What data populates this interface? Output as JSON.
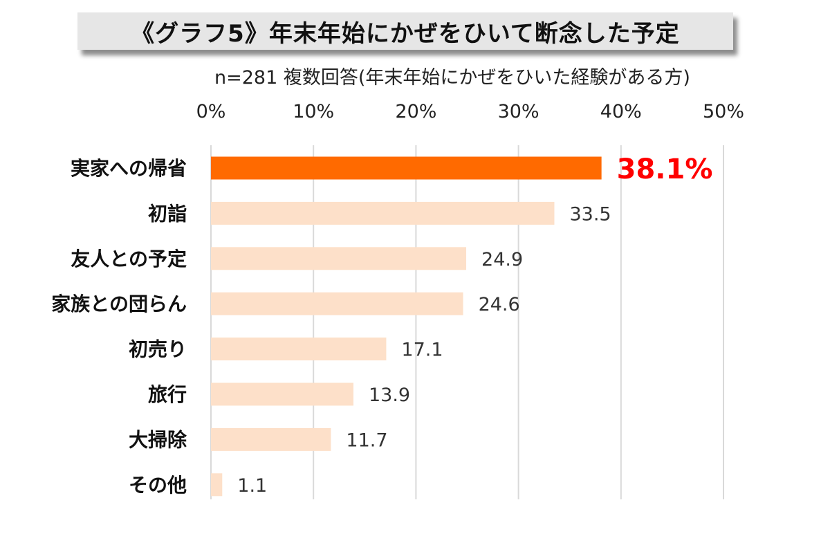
{
  "chart_data": {
    "type": "bar",
    "orientation": "horizontal",
    "title": "《グラフ5》年末年始にかぜをひいて断念した予定",
    "subtitle": "n=281  複数回答(年末年始にかぜをひいた経験がある方)",
    "categories": [
      "実家への帰省",
      "初詣",
      "友人との予定",
      "家族との団らん",
      "初売り",
      "旅行",
      "大掃除",
      "その他"
    ],
    "values": [
      38.1,
      33.5,
      24.9,
      24.6,
      17.1,
      13.9,
      11.7,
      1.1
    ],
    "data_labels": [
      "38.1%",
      "33.5",
      "24.9",
      "24.6",
      "17.1",
      "13.9",
      "11.7",
      "1.1"
    ],
    "xlim": [
      0,
      50
    ],
    "x_ticks": [
      "0%",
      "10%",
      "20%",
      "30%",
      "40%",
      "50%"
    ],
    "x_tick_values": [
      0,
      10,
      20,
      30,
      40,
      50
    ],
    "x_axis_position": "top",
    "grid": true,
    "colors": {
      "highlight": "#ff6a00",
      "bar": "#fde0c9",
      "highlight_label": "#ff0000",
      "label": "#333333",
      "grid": "#d9d9d9"
    }
  }
}
